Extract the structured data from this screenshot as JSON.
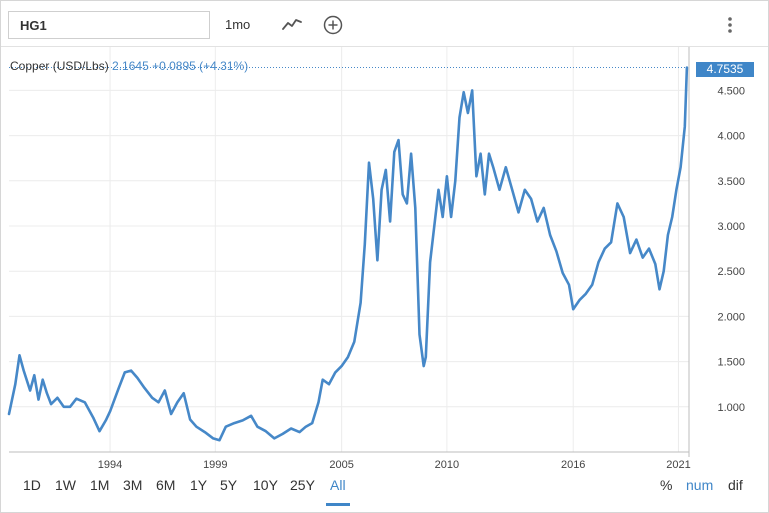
{
  "toolbar": {
    "symbol": "HG1",
    "interval": "1mo",
    "line_icon": "line-chart-icon",
    "add_icon": "add-circle-icon",
    "menu_icon": "vertical-dots-icon"
  },
  "legend": {
    "name": "Copper (USD/Lbs)",
    "price": "2.1645",
    "change": "+0.0895 (+4.31%)"
  },
  "last_value_label": "4.7535",
  "ranges": [
    "1D",
    "1W",
    "1M",
    "3M",
    "6M",
    "1Y",
    "5Y",
    "10Y",
    "25Y",
    "All"
  ],
  "active_range": "All",
  "modes": [
    "%",
    "num",
    "dif"
  ],
  "active_mode": "num",
  "colors": {
    "line": "#4688c8",
    "accent": "#3f86c8",
    "grid": "#ececec"
  },
  "chart_data": {
    "type": "line",
    "title": "",
    "xlabel": "",
    "ylabel": "",
    "x_ticks": [
      1994,
      1999,
      2005,
      2010,
      2016,
      2021
    ],
    "y_ticks": [
      1.0,
      1.5,
      2.0,
      2.5,
      3.0,
      3.5,
      4.0,
      4.5
    ],
    "y_tick_labels": [
      "1.000",
      "1.500",
      "2.000",
      "2.500",
      "3.000",
      "3.500",
      "4.000",
      "4.500"
    ],
    "xlim": [
      1989.2,
      2021.5
    ],
    "ylim": [
      0.5,
      4.98
    ],
    "grid": true,
    "series": [
      {
        "x": [
          1989.2,
          1989.5,
          1989.7,
          1989.9,
          1990.2,
          1990.4,
          1990.6,
          1990.8,
          1991.0,
          1991.2,
          1991.5,
          1991.8,
          1992.1,
          1992.4,
          1992.8,
          1993.2,
          1993.5,
          1993.8,
          1994.0,
          1994.4,
          1994.7,
          1995.0,
          1995.3,
          1995.6,
          1996.0,
          1996.3,
          1996.6,
          1996.9,
          1997.2,
          1997.5,
          1997.8,
          1998.1,
          1998.5,
          1998.9,
          1999.2,
          1999.5,
          1999.9,
          2000.3,
          2000.7,
          2001.0,
          2001.4,
          2001.8,
          2002.2,
          2002.6,
          2003.0,
          2003.3,
          2003.6,
          2003.9,
          2004.1,
          2004.4,
          2004.7,
          2005.0,
          2005.3,
          2005.6,
          2005.9,
          2006.1,
          2006.3,
          2006.5,
          2006.7,
          2006.9,
          2007.1,
          2007.3,
          2007.5,
          2007.7,
          2007.9,
          2008.1,
          2008.3,
          2008.5,
          2008.7,
          2008.9,
          2009.0,
          2009.2,
          2009.4,
          2009.6,
          2009.8,
          2010.0,
          2010.2,
          2010.4,
          2010.6,
          2010.8,
          2011.0,
          2011.2,
          2011.4,
          2011.6,
          2011.8,
          2012.0,
          2012.2,
          2012.5,
          2012.8,
          2013.1,
          2013.4,
          2013.7,
          2014.0,
          2014.3,
          2014.6,
          2014.9,
          2015.2,
          2015.5,
          2015.8,
          2016.0,
          2016.3,
          2016.6,
          2016.9,
          2017.2,
          2017.5,
          2017.8,
          2018.1,
          2018.4,
          2018.7,
          2019.0,
          2019.3,
          2019.6,
          2019.9,
          2020.1,
          2020.3,
          2020.5,
          2020.7,
          2020.9,
          2021.1,
          2021.3,
          2021.4
        ],
        "y": [
          0.92,
          1.25,
          1.57,
          1.4,
          1.18,
          1.35,
          1.08,
          1.3,
          1.15,
          1.03,
          1.1,
          1.0,
          1.0,
          1.09,
          1.05,
          0.88,
          0.73,
          0.85,
          0.95,
          1.2,
          1.38,
          1.4,
          1.32,
          1.22,
          1.1,
          1.05,
          1.18,
          0.92,
          1.05,
          1.15,
          0.86,
          0.78,
          0.72,
          0.65,
          0.63,
          0.78,
          0.82,
          0.85,
          0.9,
          0.78,
          0.73,
          0.65,
          0.7,
          0.76,
          0.72,
          0.78,
          0.82,
          1.05,
          1.3,
          1.25,
          1.38,
          1.45,
          1.55,
          1.72,
          2.15,
          2.8,
          3.7,
          3.3,
          2.62,
          3.4,
          3.62,
          3.05,
          3.82,
          3.95,
          3.35,
          3.25,
          3.8,
          3.2,
          1.8,
          1.45,
          1.55,
          2.6,
          3.0,
          3.4,
          3.1,
          3.55,
          3.1,
          3.5,
          4.2,
          4.48,
          4.25,
          4.5,
          3.55,
          3.8,
          3.35,
          3.8,
          3.65,
          3.4,
          3.65,
          3.4,
          3.15,
          3.4,
          3.3,
          3.05,
          3.2,
          2.9,
          2.72,
          2.48,
          2.35,
          2.08,
          2.18,
          2.25,
          2.35,
          2.6,
          2.75,
          2.82,
          3.25,
          3.1,
          2.7,
          2.85,
          2.65,
          2.75,
          2.58,
          2.3,
          2.5,
          2.9,
          3.1,
          3.4,
          3.65,
          4.1,
          4.7535
        ]
      }
    ]
  }
}
